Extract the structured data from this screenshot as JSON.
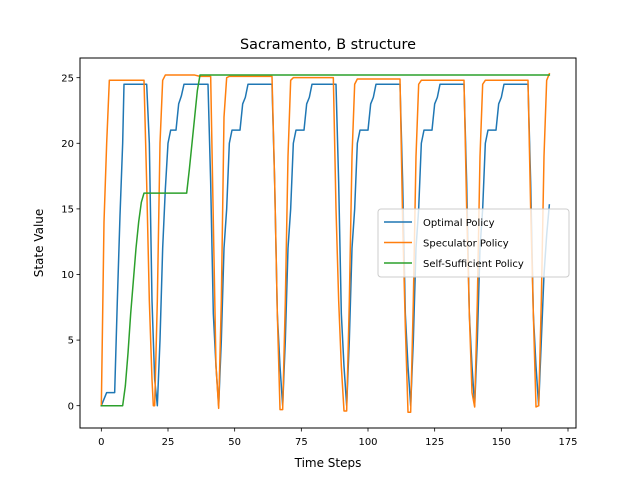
{
  "chart_data": {
    "type": "line",
    "title": "Sacramento, B structure",
    "xlabel": "Time Steps",
    "ylabel": "State Value",
    "xlim": [
      -8,
      178
    ],
    "ylim": [
      -1.7,
      26.5
    ],
    "xticks": [
      0,
      25,
      50,
      75,
      100,
      125,
      150,
      175
    ],
    "xtick_labels": [
      "0",
      "25",
      "50",
      "75",
      "100",
      "125",
      "150",
      "175"
    ],
    "yticks": [
      0,
      5,
      10,
      15,
      20,
      25
    ],
    "ytick_labels": [
      "0",
      "5",
      "10",
      "15",
      "20",
      "25"
    ],
    "grid": false,
    "legend_position": "center-right",
    "series": [
      {
        "name": "Optimal Policy",
        "color": "#1f77b4",
        "points": [
          [
            0,
            0
          ],
          [
            2,
            1.0
          ],
          [
            5,
            1.0
          ],
          [
            6,
            8
          ],
          [
            7,
            14.5
          ],
          [
            8,
            20
          ],
          [
            8.5,
            24.5
          ],
          [
            17,
            24.5
          ],
          [
            18,
            20
          ],
          [
            19,
            8
          ],
          [
            20,
            2
          ],
          [
            21,
            0
          ],
          [
            22,
            5
          ],
          [
            23,
            12
          ],
          [
            24,
            16.5
          ],
          [
            25,
            20
          ],
          [
            26,
            21
          ],
          [
            28,
            21
          ],
          [
            29,
            23
          ],
          [
            30,
            23.6
          ],
          [
            31,
            24.5
          ],
          [
            40,
            24.5
          ],
          [
            41,
            17
          ],
          [
            42,
            7
          ],
          [
            43,
            3
          ],
          [
            44,
            0
          ],
          [
            45,
            5
          ],
          [
            46,
            12
          ],
          [
            47,
            15
          ],
          [
            48,
            20
          ],
          [
            49,
            21
          ],
          [
            52,
            21
          ],
          [
            53,
            23
          ],
          [
            54,
            23.5
          ],
          [
            55,
            24.5
          ],
          [
            64,
            24.5
          ],
          [
            65,
            17
          ],
          [
            66,
            7
          ],
          [
            67,
            3
          ],
          [
            68,
            0
          ],
          [
            69,
            5
          ],
          [
            70,
            12
          ],
          [
            71,
            15
          ],
          [
            72,
            20
          ],
          [
            73,
            21
          ],
          [
            76,
            21
          ],
          [
            77,
            23
          ],
          [
            78,
            23.5
          ],
          [
            79,
            24.5
          ],
          [
            88,
            24.5
          ],
          [
            89,
            17
          ],
          [
            90,
            7
          ],
          [
            91,
            3
          ],
          [
            92,
            0
          ],
          [
            93,
            5
          ],
          [
            94,
            12
          ],
          [
            95,
            15
          ],
          [
            96,
            20
          ],
          [
            97,
            21
          ],
          [
            100,
            21
          ],
          [
            101,
            23
          ],
          [
            102,
            23.5
          ],
          [
            103,
            24.5
          ],
          [
            112,
            24.5
          ],
          [
            113,
            17
          ],
          [
            114,
            7
          ],
          [
            115,
            3
          ],
          [
            116,
            0
          ],
          [
            117,
            5
          ],
          [
            118,
            12
          ],
          [
            119,
            15
          ],
          [
            120,
            20
          ],
          [
            121,
            21
          ],
          [
            124,
            21
          ],
          [
            125,
            23
          ],
          [
            126,
            23.5
          ],
          [
            127,
            24.5
          ],
          [
            136,
            24.5
          ],
          [
            137,
            17
          ],
          [
            138,
            7
          ],
          [
            139,
            3
          ],
          [
            140,
            0
          ],
          [
            141,
            5
          ],
          [
            142,
            12
          ],
          [
            143,
            15
          ],
          [
            144,
            20
          ],
          [
            145,
            21
          ],
          [
            148,
            21
          ],
          [
            149,
            23
          ],
          [
            150,
            23.5
          ],
          [
            151,
            24.5
          ],
          [
            160,
            24.5
          ],
          [
            161,
            17
          ],
          [
            162,
            7
          ],
          [
            163,
            3
          ],
          [
            164,
            0
          ],
          [
            165,
            5
          ],
          [
            166,
            10
          ],
          [
            167,
            13
          ],
          [
            168,
            15.3
          ]
        ]
      },
      {
        "name": "Speculator Policy",
        "color": "#ff7f0e",
        "points": [
          [
            0,
            0
          ],
          [
            1,
            14
          ],
          [
            2,
            20
          ],
          [
            3,
            24.8
          ],
          [
            16,
            24.8
          ],
          [
            17,
            17
          ],
          [
            18,
            8
          ],
          [
            19,
            2
          ],
          [
            19.5,
            0
          ],
          [
            20,
            0
          ],
          [
            21,
            8
          ],
          [
            22,
            20
          ],
          [
            23,
            24.8
          ],
          [
            24,
            25.2
          ],
          [
            35,
            25.2
          ],
          [
            37,
            25.1
          ],
          [
            41,
            25.1
          ],
          [
            42,
            14
          ],
          [
            43,
            3
          ],
          [
            44,
            -0.2
          ],
          [
            45,
            8
          ],
          [
            46,
            22
          ],
          [
            47,
            25.0
          ],
          [
            48,
            25.1
          ],
          [
            64,
            25.1
          ],
          [
            65,
            17
          ],
          [
            66,
            7
          ],
          [
            67,
            -0.3
          ],
          [
            68,
            -0.3
          ],
          [
            69,
            8
          ],
          [
            70,
            19
          ],
          [
            71,
            24.8
          ],
          [
            72,
            25.0
          ],
          [
            87,
            25.0
          ],
          [
            88,
            15
          ],
          [
            89,
            8
          ],
          [
            90,
            3
          ],
          [
            91,
            -0.4
          ],
          [
            92,
            -0.4
          ],
          [
            93,
            8
          ],
          [
            94,
            19
          ],
          [
            95,
            24.5
          ],
          [
            96,
            24.9
          ],
          [
            112,
            24.9
          ],
          [
            113,
            14
          ],
          [
            114,
            6
          ],
          [
            115,
            -0.5
          ],
          [
            116,
            -0.5
          ],
          [
            117,
            8
          ],
          [
            118,
            19
          ],
          [
            119,
            24.5
          ],
          [
            120,
            24.8
          ],
          [
            136,
            24.8
          ],
          [
            137,
            15
          ],
          [
            138,
            7
          ],
          [
            139,
            1
          ],
          [
            140,
            -0.1
          ],
          [
            141,
            8
          ],
          [
            142,
            19
          ],
          [
            143,
            24.5
          ],
          [
            144,
            24.8
          ],
          [
            160,
            24.8
          ],
          [
            161,
            15
          ],
          [
            162,
            7
          ],
          [
            163,
            -0.1
          ],
          [
            164,
            0
          ],
          [
            165,
            8
          ],
          [
            166,
            19
          ],
          [
            167,
            24.8
          ],
          [
            168,
            25.3
          ]
        ]
      },
      {
        "name": "Self-Sufficient Policy",
        "color": "#2ca02c",
        "points": [
          [
            0,
            0
          ],
          [
            8,
            0
          ],
          [
            9,
            1.5
          ],
          [
            10,
            4
          ],
          [
            11,
            7
          ],
          [
            12,
            9.5
          ],
          [
            13,
            12
          ],
          [
            14,
            14
          ],
          [
            15,
            15.5
          ],
          [
            16,
            16.2
          ],
          [
            32,
            16.2
          ],
          [
            33,
            18
          ],
          [
            34,
            20
          ],
          [
            35,
            22
          ],
          [
            36,
            24
          ],
          [
            37,
            25.2
          ],
          [
            168,
            25.2
          ]
        ]
      }
    ]
  }
}
